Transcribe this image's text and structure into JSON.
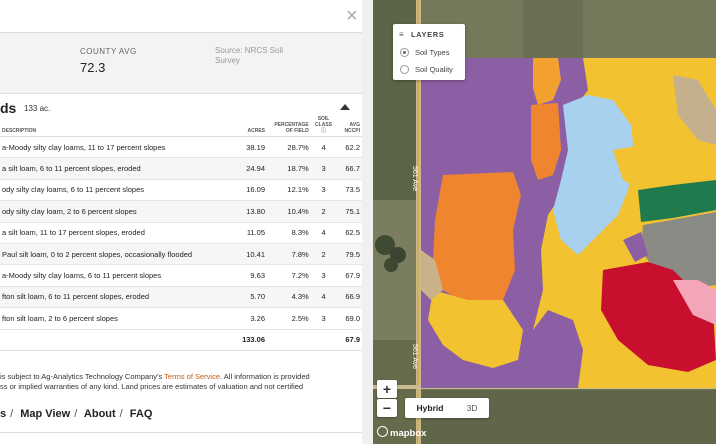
{
  "panel": {
    "close_label": "×",
    "stats": {
      "label": "COUNTY AVG",
      "value": "72.3",
      "source": "Source: NRCS Soil Survey"
    },
    "section_title": "ds",
    "section_acres": "133 ac.",
    "table": {
      "headers": {
        "description": "DESCRIPTION",
        "acres": "ACRES",
        "pct": "PERCENTAGE OF FIELD",
        "class": "SOIL CLASS",
        "avg": "AVG NCCPI"
      },
      "rows": [
        {
          "description": "a-Moody silty clay loams, 11 to 17 percent slopes",
          "acres": "38.19",
          "pct": "28.7%",
          "class": "4",
          "avg": "62.2"
        },
        {
          "description": "a silt loam, 6 to 11 percent slopes, eroded",
          "acres": "24.94",
          "pct": "18.7%",
          "class": "3",
          "avg": "66.7"
        },
        {
          "description": "ody silty clay loams, 6 to 11 percent slopes",
          "acres": "16.09",
          "pct": "12.1%",
          "class": "3",
          "avg": "73.5"
        },
        {
          "description": "ody silty clay loam, 2 to 6 percent slopes",
          "acres": "13.80",
          "pct": "10.4%",
          "class": "2",
          "avg": "75.1"
        },
        {
          "description": "a silt loam, 11 to 17 percent slopes, eroded",
          "acres": "11.05",
          "pct": "8.3%",
          "class": "4",
          "avg": "62.5"
        },
        {
          "description": "Paul silt loam, 0 to 2 percent slopes, occasionally flooded",
          "acres": "10.41",
          "pct": "7.8%",
          "class": "2",
          "avg": "79.5"
        },
        {
          "description": "a-Moody silty clay loams, 6 to 11 percent slopes",
          "acres": "9.63",
          "pct": "7.2%",
          "class": "3",
          "avg": "67.9"
        },
        {
          "description": "fton silt loam, 6 to 11 percent slopes, eroded",
          "acres": "5.70",
          "pct": "4.3%",
          "class": "4",
          "avg": "66.9"
        },
        {
          "description": "fton silt loam, 2 to 6 percent slopes",
          "acres": "3.26",
          "pct": "2.5%",
          "class": "3",
          "avg": "69.0"
        }
      ],
      "total": {
        "acres": "133.06",
        "avg": "67.9"
      }
    },
    "disclaimer": {
      "line1_prefix": "is subject to Ag-Analytics Technology Company's ",
      "terms_link": "Terms of Service",
      "line1_suffix": ". All information is provided",
      "line2": "ss or implied warranties of any kind. Land prices are estimates of valuation and not certified"
    },
    "nav": {
      "item1": "s",
      "item2": "Map View",
      "item3": "About",
      "item4": "FAQ",
      "sep": "/"
    }
  },
  "map": {
    "layers_title": "LAYERS",
    "options": [
      {
        "label": "Soil Types",
        "selected": true
      },
      {
        "label": "Soil Quality",
        "selected": false
      }
    ],
    "road_label_1": "561 Ave",
    "road_label_2": "561 Ave",
    "zoom_in": "+",
    "zoom_out": "−",
    "view_hybrid": "Hybrid",
    "view_3d": "3D",
    "attribution": "mapbox"
  }
}
